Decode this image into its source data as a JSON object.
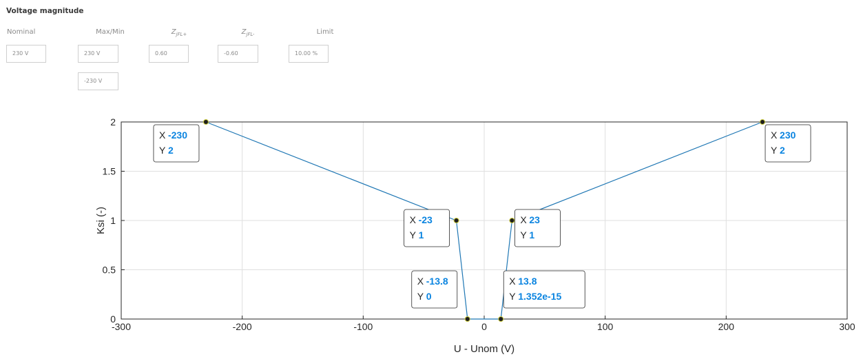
{
  "panel": {
    "title": "Voltage magnitude",
    "columns": {
      "nominal": "Nominal",
      "maxmin": "Max/Min",
      "zfl_plus": "Z",
      "zfl_plus_sub": "jFL+",
      "zfl_minus": "Z",
      "zfl_minus_sub": "jFL-",
      "limit": "Limit"
    },
    "fields": {
      "nominal": "230 V",
      "max": "230 V",
      "min": "-230 V",
      "zfl_plus": "0.60",
      "zfl_minus": "-0.60",
      "limit": "10.00 %"
    }
  },
  "chart_data": {
    "type": "line",
    "title": "",
    "xlabel": "U - Unom  (V)",
    "ylabel": "Ksi (-)",
    "xlim": [
      -300,
      300
    ],
    "ylim": [
      0,
      2
    ],
    "xticks": [
      "-300",
      "-200",
      "-100",
      "0",
      "100",
      "200",
      "300"
    ],
    "yticks": [
      "0",
      "0.5",
      "1",
      "1.5",
      "2"
    ],
    "grid": true,
    "line_color": "#1f77b4",
    "series": [
      {
        "x": [
          -230,
          -23,
          -13.8,
          13.8,
          23,
          230
        ],
        "y": [
          2,
          1,
          0,
          0,
          1,
          2
        ]
      }
    ],
    "datatips": [
      {
        "x_label": "X",
        "y_label": "Y",
        "x": "-230",
        "y": "2"
      },
      {
        "x_label": "X",
        "y_label": "Y",
        "x": "-23",
        "y": "1"
      },
      {
        "x_label": "X",
        "y_label": "Y",
        "x": "-13.8",
        "y": "0"
      },
      {
        "x_label": "X",
        "y_label": "Y",
        "x": "13.8",
        "y": "1.352e-15"
      },
      {
        "x_label": "X",
        "y_label": "Y",
        "x": "23",
        "y": "1"
      },
      {
        "x_label": "X",
        "y_label": "Y",
        "x": "230",
        "y": "2"
      }
    ]
  }
}
